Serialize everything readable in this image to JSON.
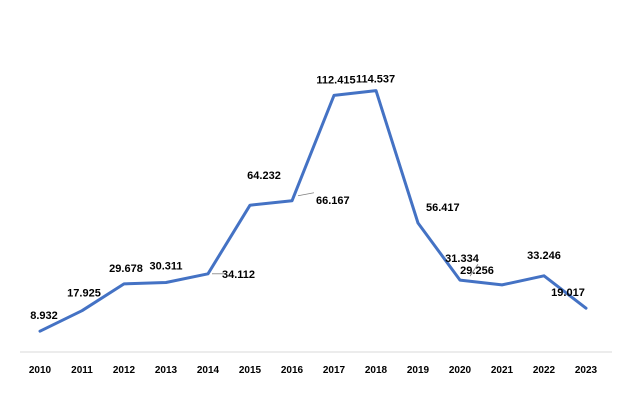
{
  "colors": {
    "line": "#4472c4",
    "axis": "#d9d9d9",
    "text": "#000000"
  },
  "chart_data": {
    "type": "line",
    "title": "",
    "xlabel": "",
    "ylabel": "",
    "ylim": [
      0,
      120
    ],
    "grid": false,
    "legend": "none",
    "categories": [
      "2010",
      "2011",
      "2012",
      "2013",
      "2014",
      "2015",
      "2016",
      "2017",
      "2018",
      "2019",
      "2020",
      "2021",
      "2022",
      "2023"
    ],
    "series": [
      {
        "values": [
          8.932,
          17.925,
          29.678,
          30.311,
          34.112,
          64.232,
          66.167,
          112.415,
          114.537,
          56.417,
          31.334,
          29.256,
          33.246,
          19.017
        ],
        "labels": [
          "8.932",
          "17.925",
          "29.678",
          "30.311",
          "34.112",
          "64.232",
          "66.167",
          "112.415",
          "114.537",
          "56.417",
          "31.334",
          "29.256",
          "33.246",
          "19.017"
        ]
      }
    ]
  }
}
